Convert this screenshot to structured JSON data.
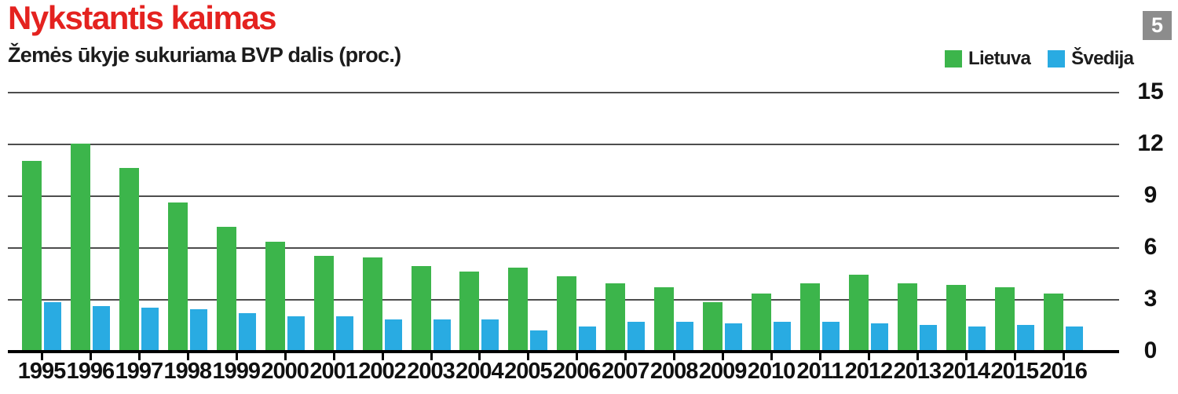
{
  "header": {
    "title": "Nykstantis kaimas",
    "subtitle": "Žemės ūkyje sukuriama BVP dalis (proc.)",
    "page_number": "5"
  },
  "colors": {
    "title_red": "#e4221f",
    "lietuva_green": "#3cb54b",
    "svedija_blue": "#29abe2",
    "page_badge_gray": "#8c8c8c",
    "gridline_gray": "#4d4d4d",
    "axis_black": "#000000",
    "text_black": "#1c1c1c"
  },
  "chart_data": {
    "type": "bar",
    "title": "Nykstantis kaimas",
    "subtitle": "Žemės ūkyje sukuriama BVP dalis (proc.)",
    "categories": [
      "1995",
      "1996",
      "1997",
      "1998",
      "1999",
      "2000",
      "2001",
      "2002",
      "2003",
      "2004",
      "2005",
      "2006",
      "2007",
      "2008",
      "2009",
      "2010",
      "2011",
      "2012",
      "2013",
      "2014",
      "2015",
      "2016"
    ],
    "series": [
      {
        "name": "Lietuva",
        "color": "#3cb54b",
        "values": [
          11.0,
          12.0,
          10.6,
          8.6,
          7.2,
          6.3,
          5.5,
          5.4,
          4.9,
          4.6,
          4.8,
          4.3,
          3.9,
          3.7,
          2.8,
          3.3,
          3.9,
          4.4,
          3.9,
          3.8,
          3.7,
          3.3
        ]
      },
      {
        "name": "Švedija",
        "color": "#29abe2",
        "values": [
          2.8,
          2.6,
          2.5,
          2.4,
          2.2,
          2.0,
          2.0,
          1.8,
          1.8,
          1.8,
          1.2,
          1.4,
          1.7,
          1.7,
          1.6,
          1.7,
          1.7,
          1.6,
          1.5,
          1.4,
          1.5,
          1.4
        ]
      }
    ],
    "xlabel": "",
    "ylabel": "",
    "ylim": [
      0,
      15
    ],
    "y_ticks": [
      15,
      12,
      9,
      6,
      3,
      0
    ],
    "grid": true,
    "legend_position": "top-right"
  }
}
